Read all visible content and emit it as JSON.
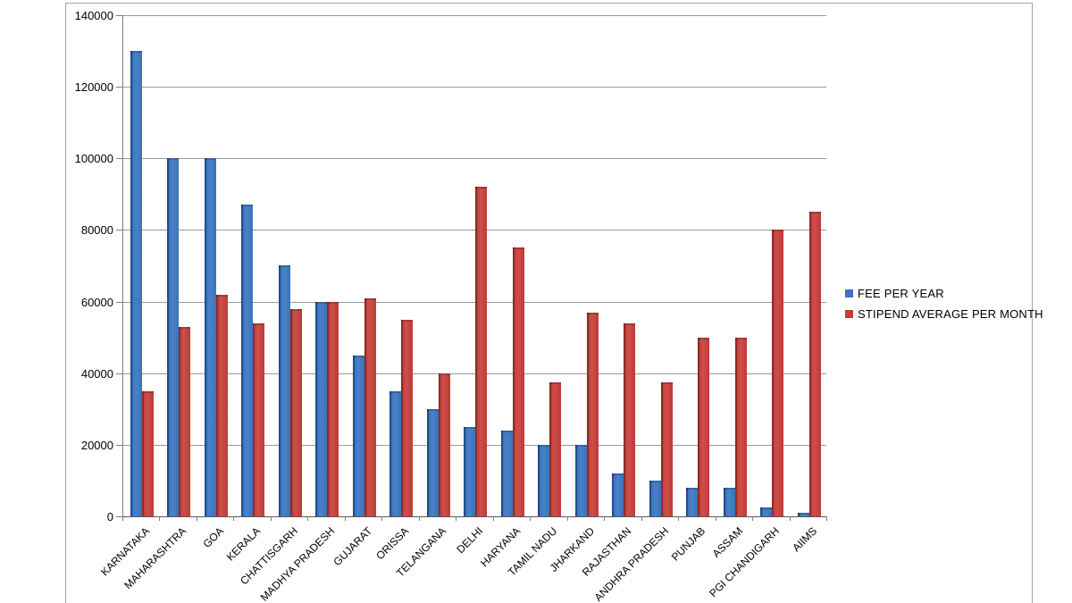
{
  "chart_data": {
    "type": "bar",
    "title": "",
    "xlabel": "",
    "ylabel": "",
    "categories": [
      "KARNATAKA",
      "MAHARASHTRA",
      "GOA",
      "KERALA",
      "CHATTISGARH",
      "MADHYA PRADESH",
      "GUJARAT",
      "ORISSA",
      "TELANGANA",
      "DELHI",
      "HARYANA",
      "TAMIL NADU",
      "JHARKAND",
      "RAJASTHAN",
      "ANDHRA PRADESH",
      "PUNJAB",
      "ASSAM",
      "PGI CHANDIGARH",
      "AIIMS"
    ],
    "series": [
      {
        "name": "FEE PER YEAR",
        "color": "#3b72bb",
        "values": [
          130000,
          100000,
          100000,
          87000,
          70000,
          60000,
          45000,
          35000,
          30000,
          25000,
          24000,
          20000,
          20000,
          12000,
          10000,
          8000,
          8000,
          2500,
          1000
        ]
      },
      {
        "name": "STIPEND AVERAGE PER MONTH",
        "color": "#c2403c",
        "values": [
          35000,
          53000,
          62000,
          54000,
          58000,
          60000,
          61000,
          55000,
          40000,
          92000,
          75000,
          37500,
          57000,
          54000,
          37500,
          50000,
          50000,
          80000,
          85000
        ]
      }
    ],
    "ylim": [
      0,
      140000
    ],
    "yticks": [
      "0",
      "20000",
      "40000",
      "60000",
      "80000",
      "100000",
      "120000",
      "140000"
    ],
    "grid": true,
    "legend_position": "right",
    "colors": {
      "grid_line": "#9a9a9a",
      "axis_line": "#595959",
      "frame_border": "#a6a6a6",
      "blue_series": "#3b72bb",
      "red_series": "#c2403c"
    }
  }
}
